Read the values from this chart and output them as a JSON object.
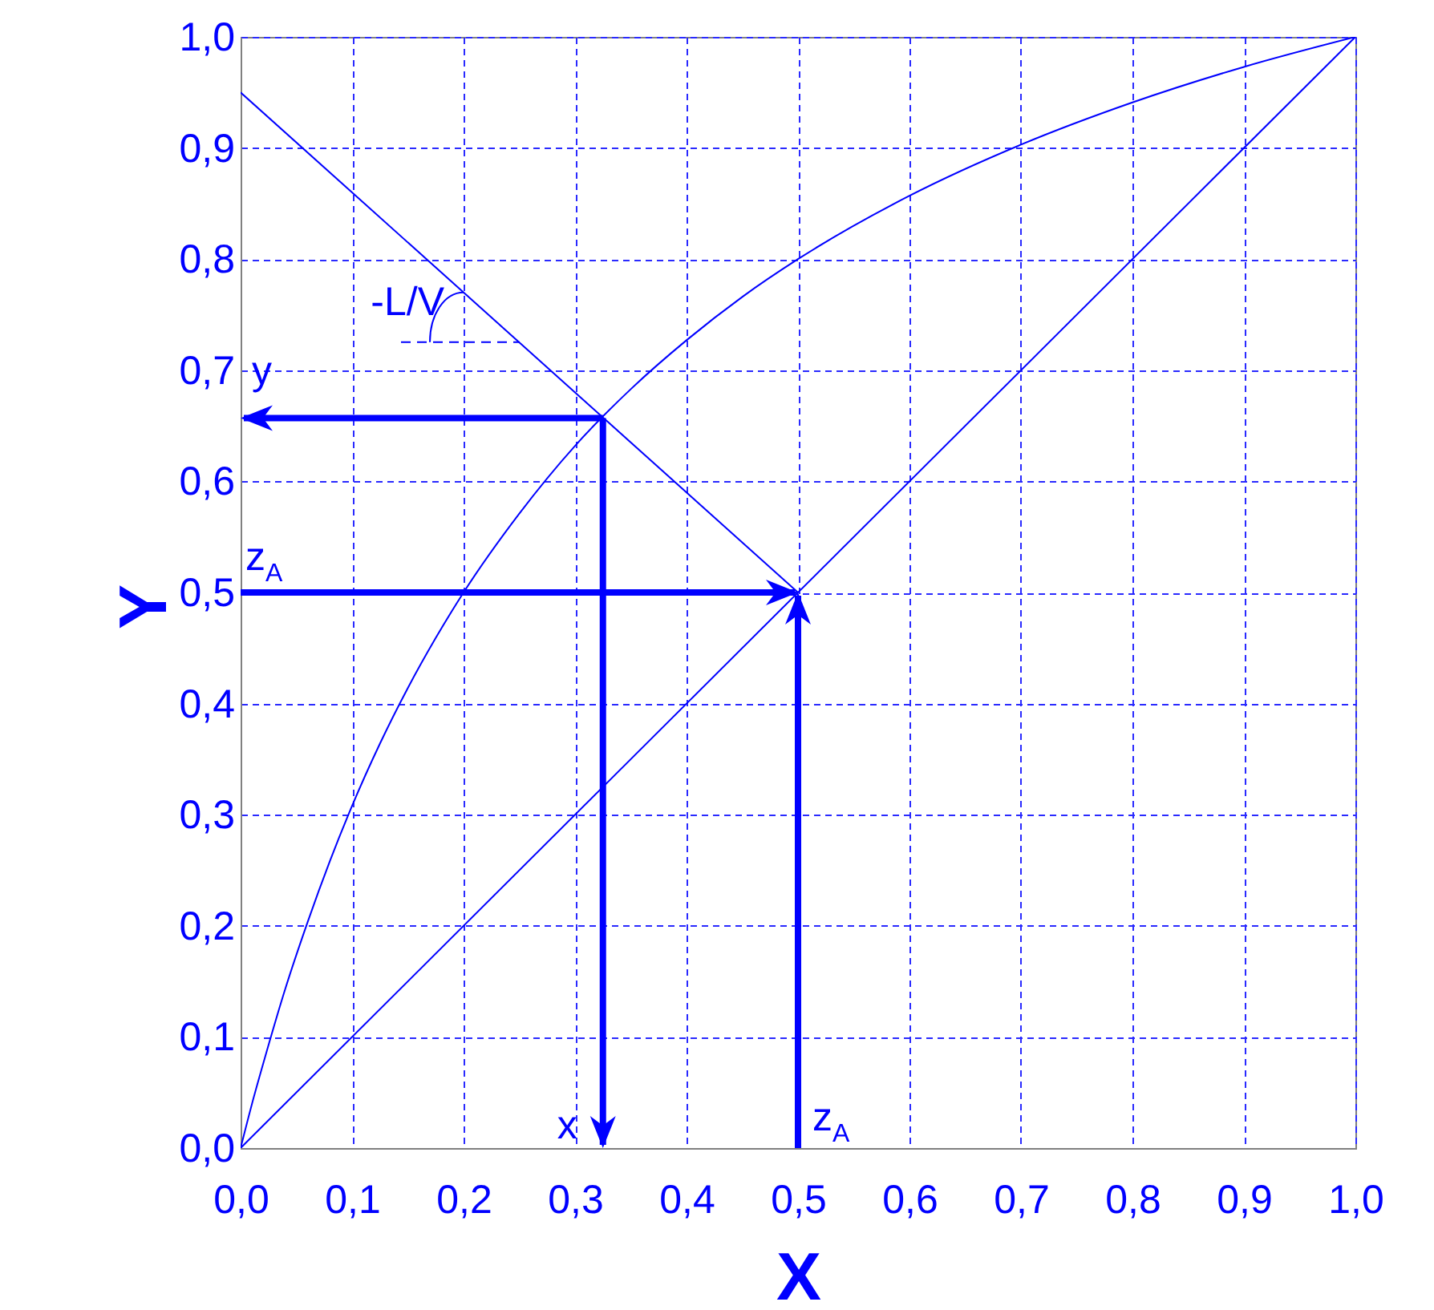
{
  "chart_data": {
    "type": "line",
    "xlabel": "X",
    "ylabel": "Y",
    "xlim": [
      0,
      1
    ],
    "ylim": [
      0,
      1
    ],
    "xticks": [
      {
        "value": 0,
        "label": "0,0"
      },
      {
        "value": 0.1,
        "label": "0,1"
      },
      {
        "value": 0.2,
        "label": "0,2"
      },
      {
        "value": 0.3,
        "label": "0,3"
      },
      {
        "value": 0.4,
        "label": "0,4"
      },
      {
        "value": 0.5,
        "label": "0,5"
      },
      {
        "value": 0.6,
        "label": "0,6"
      },
      {
        "value": 0.7,
        "label": "0,7"
      },
      {
        "value": 0.8,
        "label": "0,8"
      },
      {
        "value": 0.9,
        "label": "0,9"
      },
      {
        "value": 1,
        "label": "1,0"
      }
    ],
    "yticks": [
      {
        "value": 0,
        "label": "0,0"
      },
      {
        "value": 0.1,
        "label": "0,1"
      },
      {
        "value": 0.2,
        "label": "0,2"
      },
      {
        "value": 0.3,
        "label": "0,3"
      },
      {
        "value": 0.4,
        "label": "0,4"
      },
      {
        "value": 0.5,
        "label": "0,5"
      },
      {
        "value": 0.6,
        "label": "0,6"
      },
      {
        "value": 0.7,
        "label": "0,7"
      },
      {
        "value": 0.8,
        "label": "0,8"
      },
      {
        "value": 0.9,
        "label": "0,9"
      },
      {
        "value": 1,
        "label": "1,0"
      }
    ],
    "grid": true,
    "series": [
      {
        "color": "#0000ff",
        "x": [
          0,
          0.01,
          0.02,
          0.04,
          0.06,
          0.08,
          0.1,
          0.125,
          0.15,
          0.175,
          0.2,
          0.25,
          0.3,
          0.35,
          0.4,
          0.45,
          0.5,
          0.6,
          0.7,
          0.8,
          0.9,
          1
        ],
        "values": [
          0,
          0.039,
          0.075,
          0.143,
          0.203,
          0.258,
          0.308,
          0.364,
          0.414,
          0.459,
          0.5,
          0.571,
          0.632,
          0.683,
          0.727,
          0.766,
          0.8,
          0.857,
          0.903,
          0.941,
          0.973,
          1
        ]
      },
      {
        "color": "#0000ff",
        "x": [
          0,
          1
        ],
        "values": [
          0,
          1
        ]
      },
      {
        "color": "#0000ff",
        "x": [
          0,
          0.5
        ],
        "values": [
          0.95,
          0.5
        ]
      }
    ],
    "annotations": [
      {
        "text": "y",
        "x": 0.325,
        "y": 0.657
      },
      {
        "text": "x",
        "x": 0.325,
        "y": 0.657
      },
      {
        "text": "z$_{A}$",
        "x": 0.5,
        "y": 0.5
      },
      {
        "text": "z$_{A}$",
        "x": 0.5,
        "y": 0.5
      },
      {
        "text": "-L/V",
        "x": 0.2,
        "y": 0.77
      }
    ]
  }
}
